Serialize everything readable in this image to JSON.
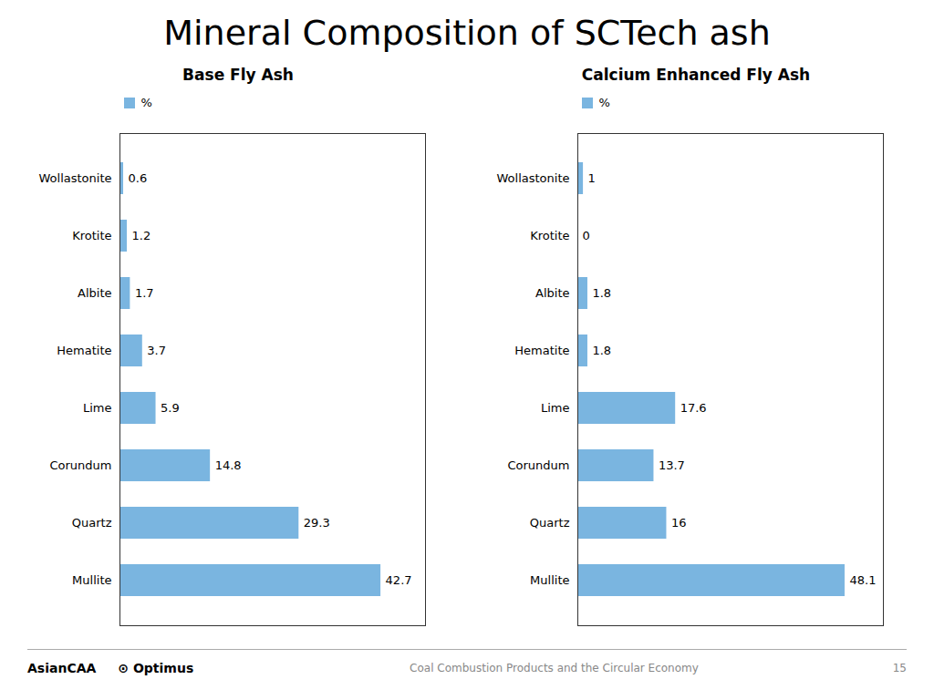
{
  "title": "Mineral Composition of SCTech ash",
  "chart_data": [
    {
      "type": "bar",
      "title": "Base Fly Ash",
      "orientation": "horizontal",
      "categories": [
        "Wollastonite",
        "Krotite",
        "Albite",
        "Hematite",
        "Lime",
        "Corundum",
        "Quartz",
        "Mullite"
      ],
      "series": [
        {
          "name": "%",
          "color": "#7ab5e0",
          "values": [
            0.6,
            1.2,
            1.7,
            3.7,
            5.9,
            14.8,
            29.3,
            42.7
          ]
        }
      ],
      "xlim": [
        0,
        50
      ],
      "grid": false,
      "legend": "upper left",
      "data_labels": true,
      "tick_labels": "y"
    },
    {
      "type": "bar",
      "title": "Calcium Enhanced Fly Ash",
      "orientation": "horizontal",
      "categories": [
        "Wollastonite",
        "Krotite",
        "Albite",
        "Hematite",
        "Lime",
        "Corundum",
        "Quartz",
        "Mullite"
      ],
      "series": [
        {
          "name": "%",
          "color": "#7ab5e0",
          "values": [
            1,
            0,
            1.8,
            1.8,
            17.6,
            13.7,
            16,
            48.1
          ]
        }
      ],
      "xlim": [
        0,
        55
      ],
      "grid": false,
      "legend": "upper left",
      "data_labels": true,
      "tick_labels": "y"
    }
  ],
  "annotations": [
    "AsianCAA",
    "⊙ Optimus",
    "Coal Combustion Products and the Circular Economy",
    "15"
  ]
}
